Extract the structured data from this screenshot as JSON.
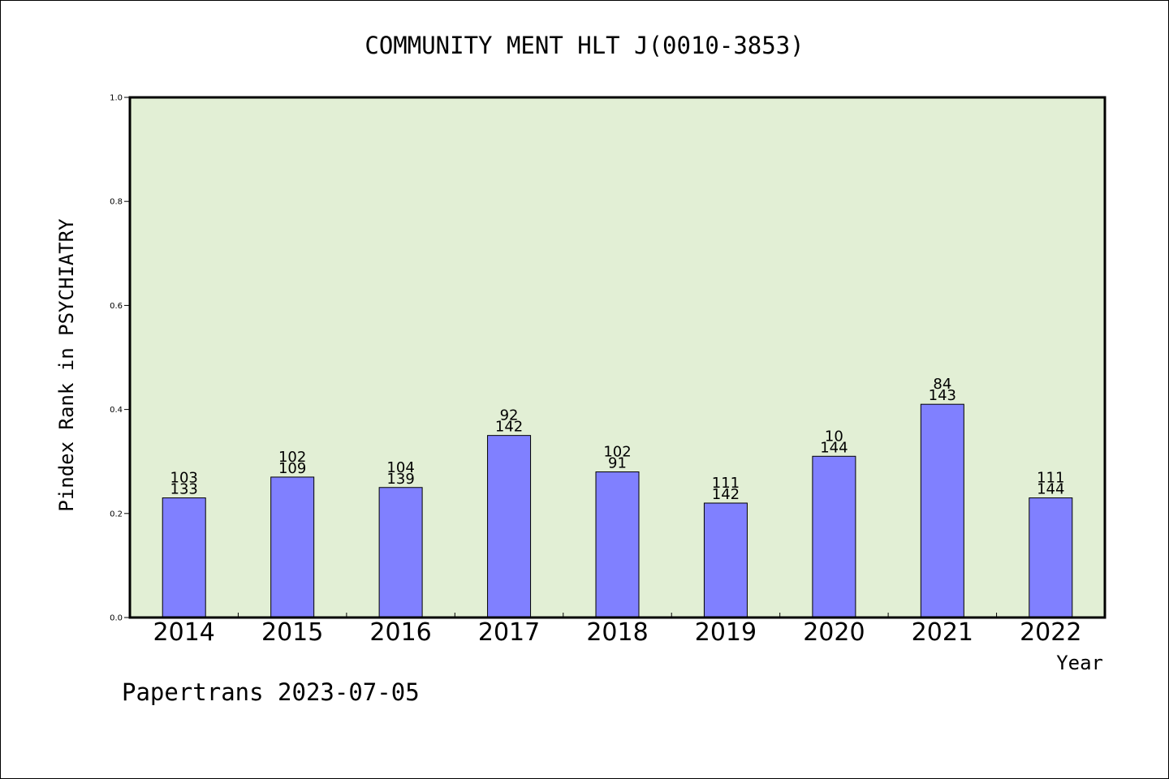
{
  "chart_data": {
    "type": "bar",
    "title": "COMMUNITY MENT HLT J(0010-3853)",
    "xlabel": "Year",
    "ylabel": "Pindex Rank in PSYCHIATRY",
    "ylim": [
      0,
      1.0
    ],
    "yticks": [
      "0.0",
      "0.2",
      "0.4",
      "0.6",
      "0.8",
      "1.0"
    ],
    "grid": false,
    "categories": [
      "2014",
      "2015",
      "2016",
      "2017",
      "2018",
      "2019",
      "2020",
      "2021",
      "2022"
    ],
    "values": [
      0.23,
      0.27,
      0.25,
      0.35,
      0.28,
      0.22,
      0.31,
      0.41,
      0.23
    ],
    "labels_top": [
      "103",
      "102",
      "104",
      "92",
      "102",
      "111",
      "10",
      "84",
      "111"
    ],
    "labels_bottom": [
      "133",
      "109",
      "139",
      "142",
      "91",
      "142",
      "144",
      "143",
      "144"
    ],
    "colors": {
      "plot_background": "#e2efd5",
      "bar_fill": "#8080ff",
      "bar_stroke": "#000000",
      "axis": "#000000"
    }
  },
  "footer": "Papertrans 2023-07-05"
}
